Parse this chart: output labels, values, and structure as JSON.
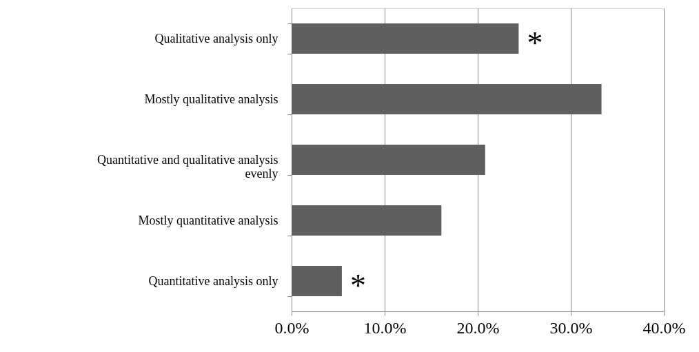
{
  "chart_data": {
    "type": "bar",
    "orientation": "horizontal",
    "categories": [
      "Qualitative analysis only",
      "Mostly qualitative analysis",
      "Quantitative and qualitative analysis evenly",
      "Mostly quantitative analysis",
      "Quantitative analysis only"
    ],
    "values": [
      24.4,
      33.3,
      20.8,
      16.1,
      5.4
    ],
    "color": "#5f5f5f",
    "xlim": [
      0,
      40
    ],
    "xticks": [
      {
        "value": 0,
        "label": "0.0%"
      },
      {
        "value": 10,
        "label": "10.0%"
      },
      {
        "value": 20,
        "label": "20.0%"
      },
      {
        "value": 30,
        "label": "30.0%"
      },
      {
        "value": 40,
        "label": "40.0%"
      }
    ],
    "grid": "x",
    "annotations": [
      {
        "text": "*",
        "x": 24.4,
        "y": "Qualitative analysis only"
      },
      {
        "text": "*",
        "x": 5.4,
        "y": "Quantitative analysis only"
      }
    ]
  }
}
